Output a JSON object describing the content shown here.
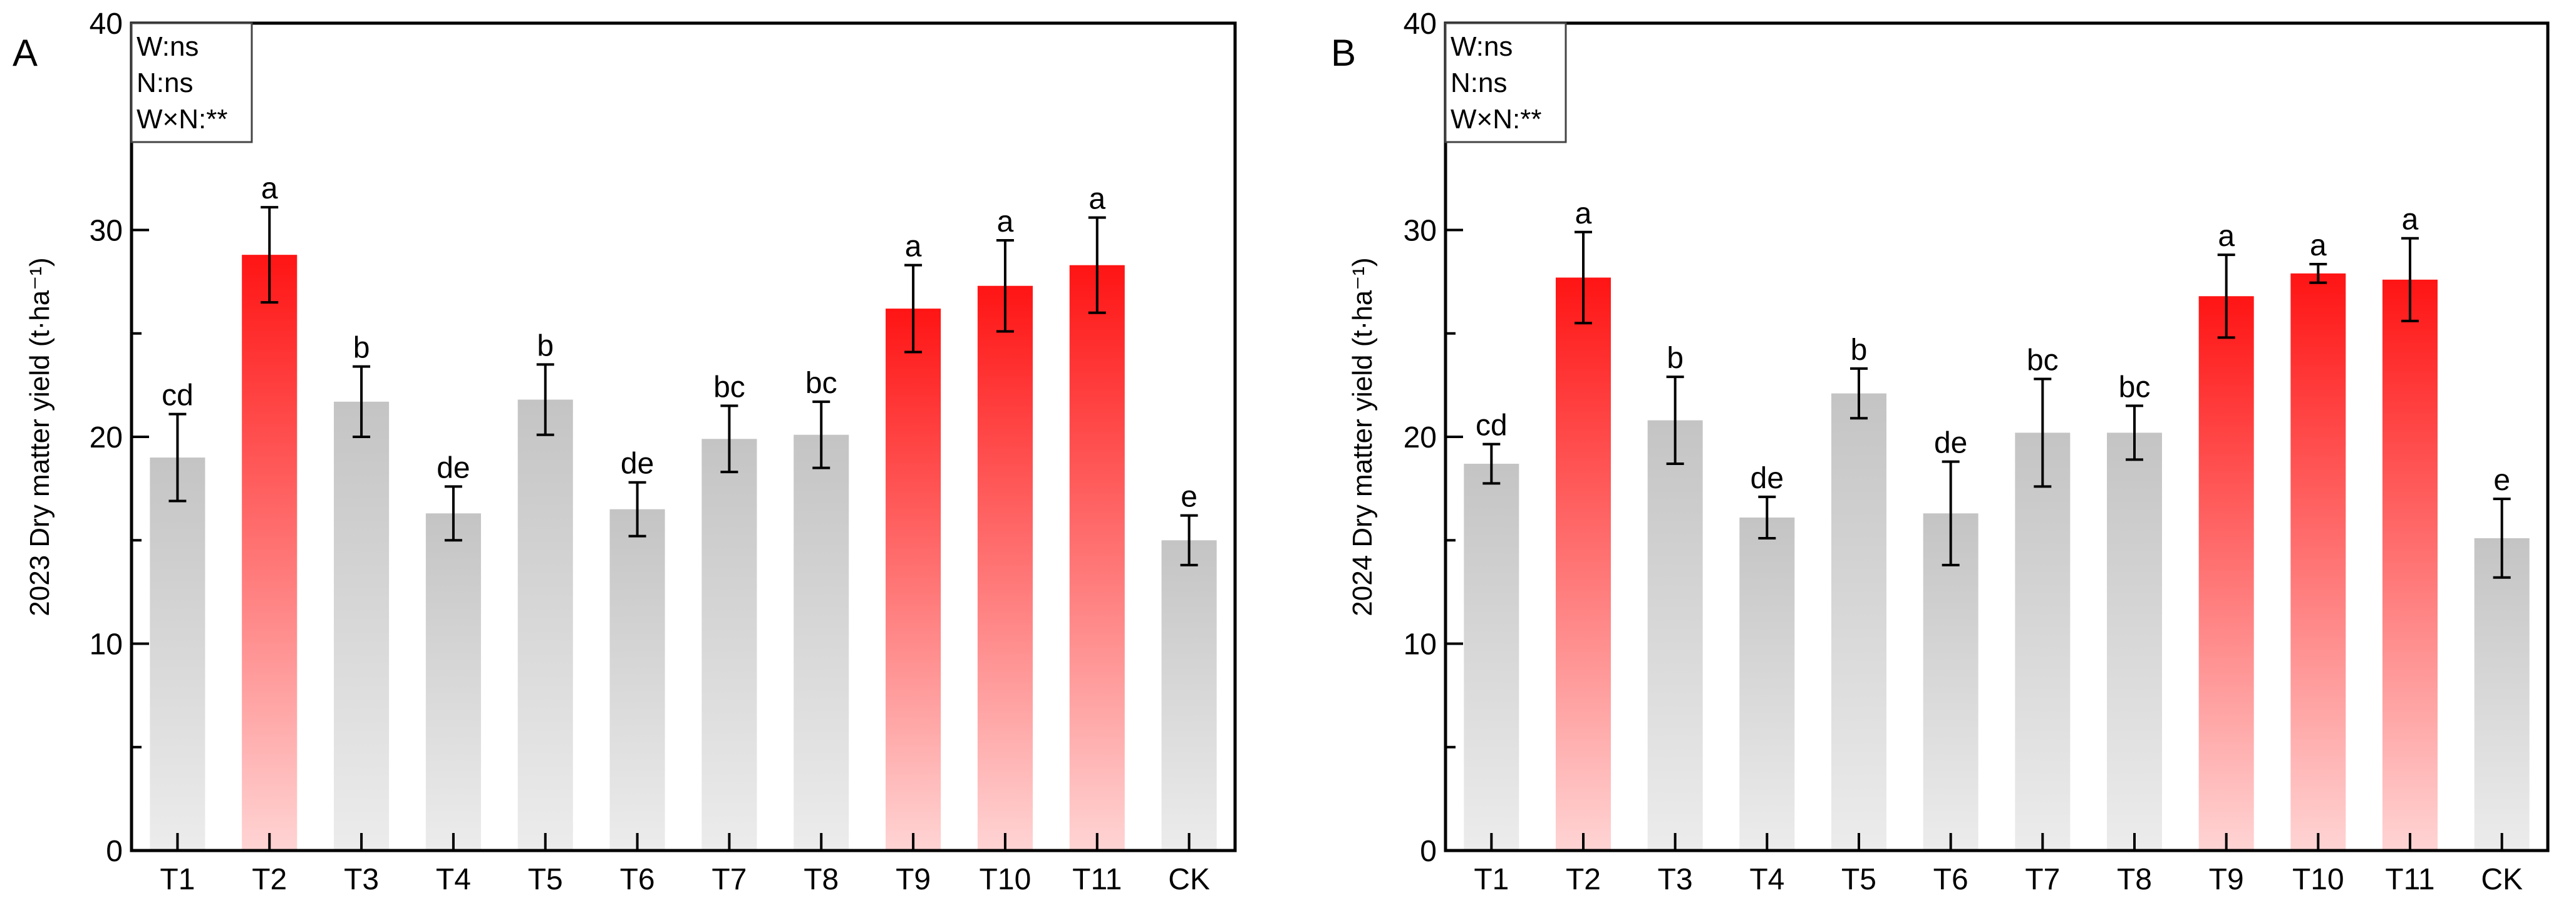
{
  "colors": {
    "highlight_top": "#ff1414",
    "highlight_bottom": "#ffd4d4",
    "normal_top": "#c4c4c4",
    "normal_bottom": "#ececec",
    "axis": "#000000"
  },
  "chart_data": [
    {
      "type": "bar",
      "panel_label": "A",
      "ylabel": "2023 Dry matter yield (t·ha⁻¹)",
      "ylim": [
        0,
        40
      ],
      "yticks": [
        0,
        10,
        20,
        30,
        40
      ],
      "categories": [
        "T1",
        "T2",
        "T3",
        "T4",
        "T5",
        "T6",
        "T7",
        "T8",
        "T9",
        "T10",
        "T11",
        "CK"
      ],
      "values": [
        19.0,
        28.8,
        21.7,
        16.3,
        21.8,
        16.5,
        19.9,
        20.1,
        26.2,
        27.3,
        28.3,
        15.0
      ],
      "errors": [
        2.1,
        2.3,
        1.7,
        1.3,
        1.7,
        1.3,
        1.6,
        1.6,
        2.1,
        2.2,
        2.3,
        1.2
      ],
      "letters": [
        "cd",
        "a",
        "b",
        "de",
        "b",
        "de",
        "bc",
        "bc",
        "a",
        "a",
        "a",
        "e"
      ],
      "highlighted": [
        false,
        true,
        false,
        false,
        false,
        false,
        false,
        false,
        true,
        true,
        true,
        false
      ],
      "legend": [
        "W:ns",
        "N:ns",
        "W×N:**"
      ],
      "legend_position": "top-left"
    },
    {
      "type": "bar",
      "panel_label": "B",
      "ylabel": "2024 Dry matter yield (t·ha⁻¹)",
      "ylim": [
        0,
        40
      ],
      "yticks": [
        0,
        10,
        20,
        30,
        40
      ],
      "categories": [
        "T1",
        "T2",
        "T3",
        "T4",
        "T5",
        "T6",
        "T7",
        "T8",
        "T9",
        "T10",
        "T11",
        "CK"
      ],
      "values": [
        18.7,
        27.7,
        20.8,
        16.1,
        22.1,
        16.3,
        20.2,
        20.2,
        26.8,
        27.9,
        27.6,
        15.1
      ],
      "errors": [
        0.95,
        2.2,
        2.1,
        1.0,
        1.2,
        2.5,
        2.6,
        1.3,
        2.0,
        0.45,
        2.0,
        1.9
      ],
      "letters": [
        "cd",
        "a",
        "b",
        "de",
        "b",
        "de",
        "bc",
        "bc",
        "a",
        "a",
        "a",
        "e"
      ],
      "highlighted": [
        false,
        true,
        false,
        false,
        false,
        false,
        false,
        false,
        true,
        true,
        true,
        false
      ],
      "legend": [
        "W:ns",
        "N:ns",
        "W×N:**"
      ],
      "legend_position": "top-left"
    }
  ]
}
